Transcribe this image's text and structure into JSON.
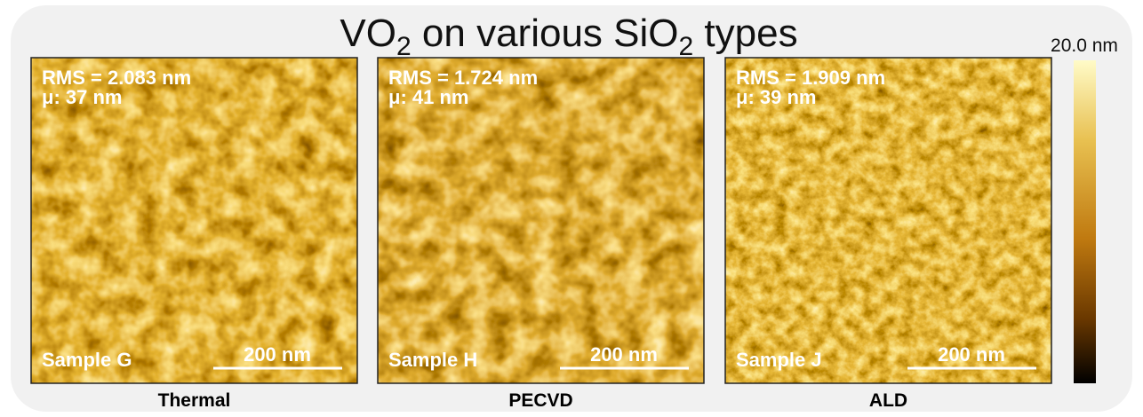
{
  "title_parts": [
    "VO",
    "2",
    " on various SiO",
    "2",
    " types"
  ],
  "colorbar_label": "20.0 nm",
  "panels": [
    {
      "rms": "RMS = 2.083 nm",
      "mu": "μ: 37 nm",
      "sample": "Sample G",
      "scale": "200 nm",
      "caption": "Thermal"
    },
    {
      "rms": "RMS = 1.724 nm",
      "mu": "μ: 41 nm",
      "sample": "Sample H",
      "scale": "200 nm",
      "caption": "PECVD"
    },
    {
      "rms": "RMS = 1.909 nm",
      "mu": "μ: 39 nm",
      "sample": "Sample J",
      "scale": "200 nm",
      "caption": "ALD"
    }
  ]
}
